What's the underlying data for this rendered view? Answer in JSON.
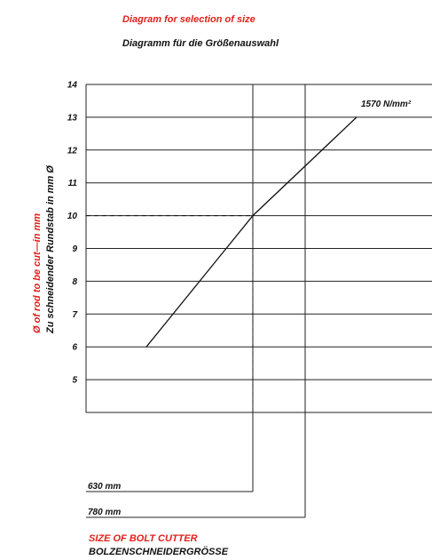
{
  "title_en": "Diagram for selection of size",
  "title_de": "Diagramm für die Größenauswahl",
  "colors": {
    "accent": "#e0201b",
    "ink": "#111111"
  },
  "chart_data": {
    "type": "line",
    "ylabel_en": "Ø of rod  to be cut—in mm",
    "ylabel_de": "Zu schneidender  Rundstab in mm Ø",
    "xlabel_en": "SIZE OF BOLT CUTTER",
    "xlabel_de": "BOLZENSCHNEIDERGRÖSSE",
    "y_ticks": [
      14,
      13,
      12,
      11,
      10,
      9,
      8,
      7,
      6,
      5
    ],
    "ylim": [
      4,
      14
    ],
    "series": [
      {
        "name": "1570 N/mm²",
        "points": [
          {
            "x": "below 630 mm",
            "y": 6
          },
          {
            "x": "630 mm",
            "y": 10
          },
          {
            "x": "above 780 mm",
            "y": 13
          }
        ]
      }
    ],
    "size_markers": [
      {
        "label": "630 mm",
        "y_at_line": 10
      },
      {
        "label": "780 mm"
      }
    ],
    "guide": {
      "y": 10,
      "dashed": true
    }
  }
}
